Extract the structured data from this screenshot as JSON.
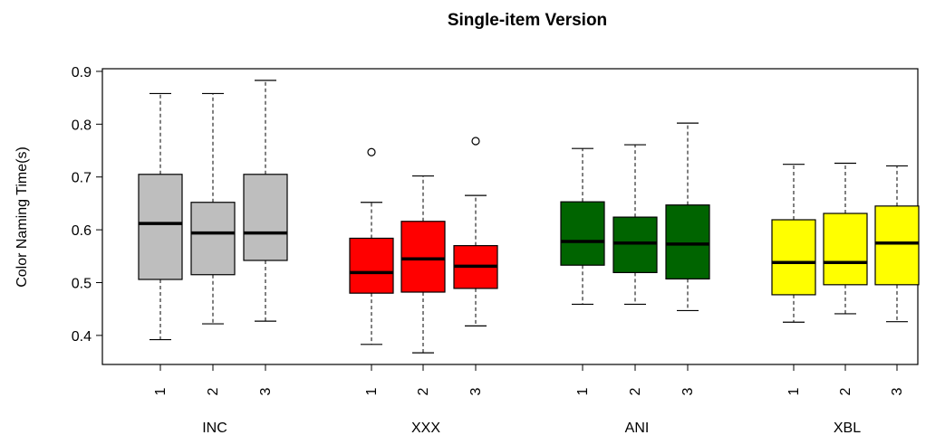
{
  "chart_data": {
    "type": "box",
    "title": "Single-item Version",
    "ylabel": "Color Naming Time(s)",
    "xlabel": "",
    "ylim": [
      0.345,
      0.905
    ],
    "yticks": [
      0.4,
      0.5,
      0.6,
      0.7,
      0.8,
      0.9
    ],
    "grid": false,
    "legend": "none",
    "groups": [
      {
        "name": "INC",
        "color": "#bebebe",
        "boxes": [
          {
            "label": "1",
            "min": 0.392,
            "q1": 0.506,
            "median": 0.612,
            "q3": 0.705,
            "max": 0.858,
            "outliers": []
          },
          {
            "label": "2",
            "min": 0.422,
            "q1": 0.515,
            "median": 0.594,
            "q3": 0.652,
            "max": 0.858,
            "outliers": []
          },
          {
            "label": "3",
            "min": 0.427,
            "q1": 0.542,
            "median": 0.594,
            "q3": 0.705,
            "max": 0.883,
            "outliers": []
          }
        ]
      },
      {
        "name": "XXX",
        "color": "#ff0000",
        "boxes": [
          {
            "label": "1",
            "min": 0.383,
            "q1": 0.48,
            "median": 0.519,
            "q3": 0.584,
            "max": 0.652,
            "outliers": [
              0.747
            ]
          },
          {
            "label": "2",
            "min": 0.367,
            "q1": 0.482,
            "median": 0.545,
            "q3": 0.616,
            "max": 0.702,
            "outliers": []
          },
          {
            "label": "3",
            "min": 0.418,
            "q1": 0.489,
            "median": 0.531,
            "q3": 0.57,
            "max": 0.665,
            "outliers": [
              0.768
            ]
          }
        ]
      },
      {
        "name": "ANI",
        "color": "#006400",
        "boxes": [
          {
            "label": "1",
            "min": 0.459,
            "q1": 0.533,
            "median": 0.578,
            "q3": 0.653,
            "max": 0.754,
            "outliers": []
          },
          {
            "label": "2",
            "min": 0.459,
            "q1": 0.519,
            "median": 0.575,
            "q3": 0.624,
            "max": 0.761,
            "outliers": []
          },
          {
            "label": "3",
            "min": 0.447,
            "q1": 0.507,
            "median": 0.573,
            "q3": 0.647,
            "max": 0.802,
            "outliers": []
          }
        ]
      },
      {
        "name": "XBL",
        "color": "#ffff00",
        "boxes": [
          {
            "label": "1",
            "min": 0.425,
            "q1": 0.477,
            "median": 0.538,
            "q3": 0.619,
            "max": 0.724,
            "outliers": []
          },
          {
            "label": "2",
            "min": 0.441,
            "q1": 0.496,
            "median": 0.538,
            "q3": 0.631,
            "max": 0.726,
            "outliers": []
          },
          {
            "label": "3",
            "min": 0.426,
            "q1": 0.496,
            "median": 0.575,
            "q3": 0.645,
            "max": 0.721,
            "outliers": []
          }
        ]
      }
    ]
  }
}
